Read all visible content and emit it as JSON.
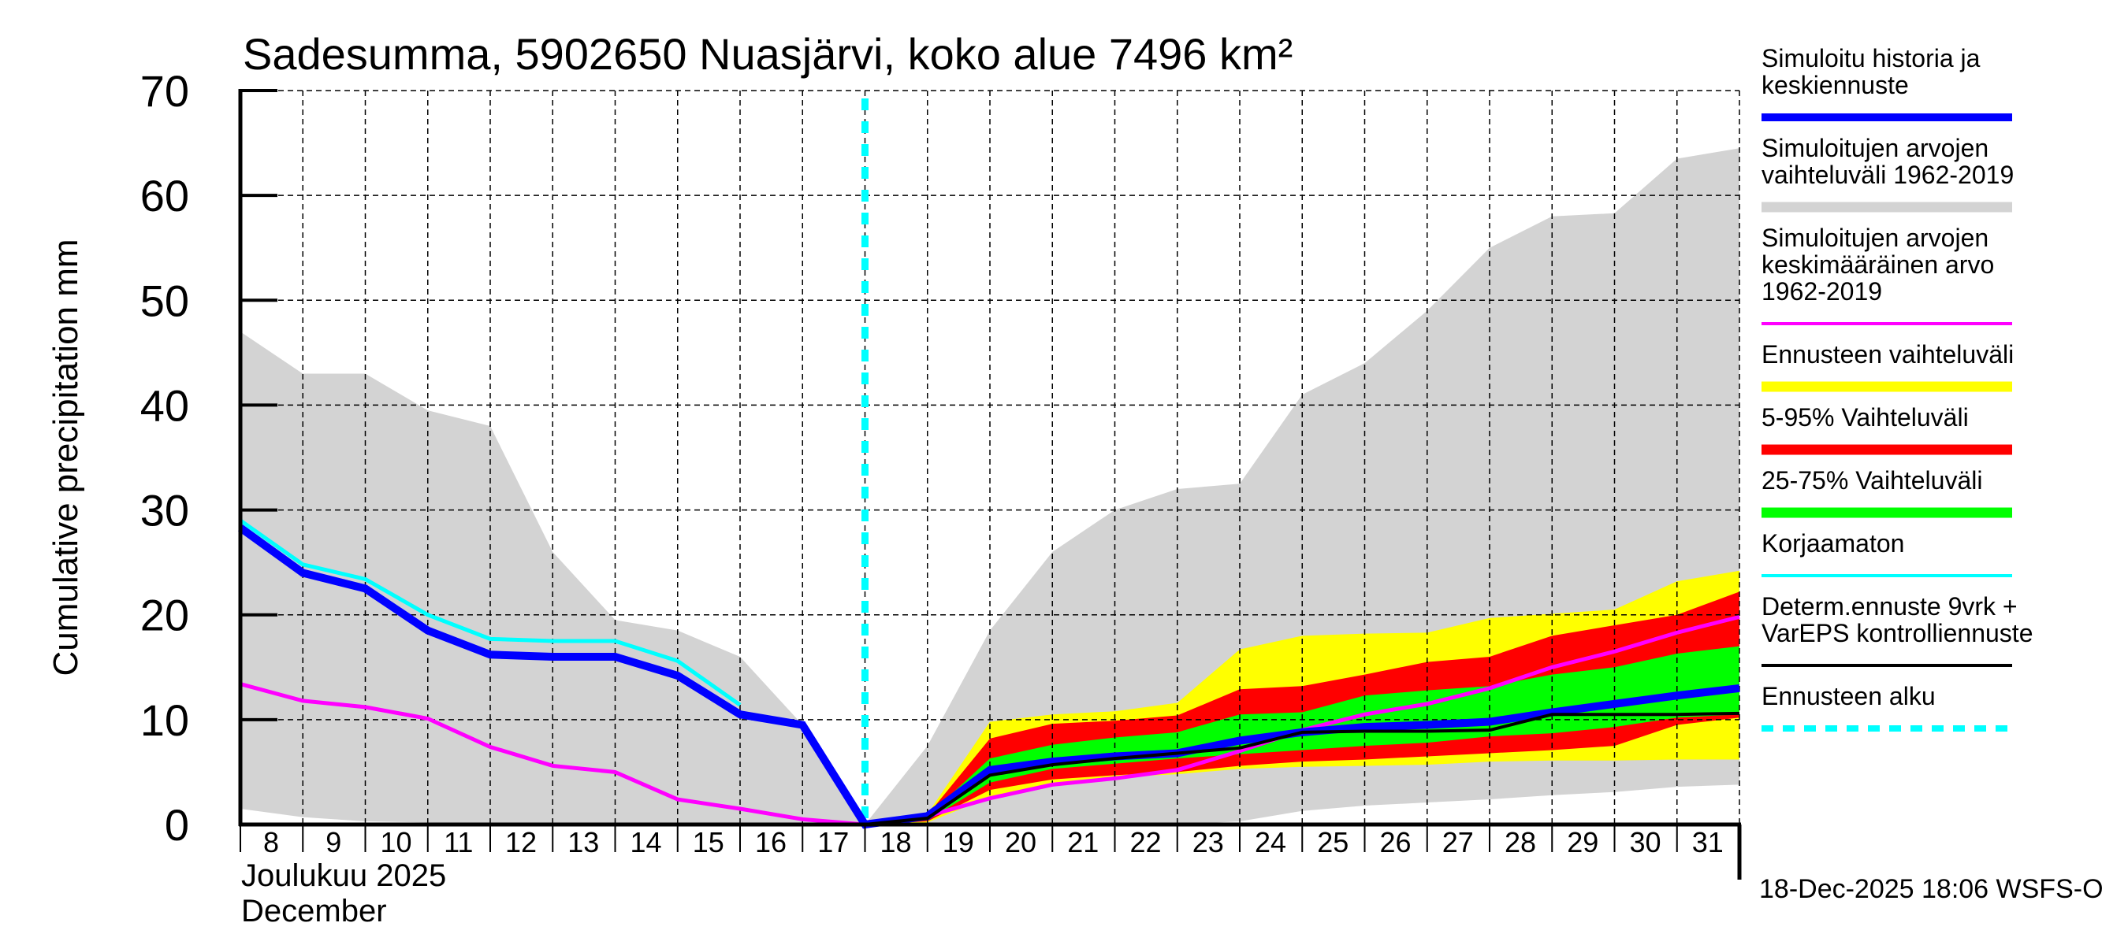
{
  "chart_data": {
    "type": "area",
    "title": "Sadesumma, 5902650 Nuasjärvi, koko alue 7496 km²",
    "ylabel": "Cumulative precipitation   mm",
    "xlabel_line1": "Joulukuu  2025",
    "xlabel_line2": "December",
    "footer": "18-Dec-2025 18:06 WSFS-O",
    "ylim": [
      0,
      70
    ],
    "xlim": [
      8,
      32
    ],
    "grid": true,
    "legend_position": "right",
    "yticks": [
      0,
      10,
      20,
      30,
      40,
      50,
      60,
      70
    ],
    "xticks": [
      8,
      9,
      10,
      11,
      12,
      13,
      14,
      15,
      16,
      17,
      18,
      19,
      20,
      21,
      22,
      23,
      24,
      25,
      26,
      27,
      28,
      29,
      30,
      31
    ],
    "forecast_start": 18,
    "x": [
      8,
      9,
      10,
      11,
      12,
      13,
      14,
      15,
      16,
      17,
      18,
      19,
      20,
      21,
      22,
      23,
      24,
      25,
      26,
      27,
      28,
      29,
      30,
      31,
      32
    ],
    "bands": [
      {
        "name": "Simuloitujen arvojen vaihteluväli 1962-2019",
        "color": "#d3d3d3",
        "x": [
          8,
          9,
          10,
          11,
          12,
          13,
          14,
          15,
          16,
          17,
          18,
          19,
          20,
          21,
          22,
          23,
          24,
          25,
          26,
          27,
          28,
          29,
          30,
          31,
          32
        ],
        "upper": [
          47,
          43,
          43,
          39.5,
          38,
          26,
          19.5,
          18.5,
          16,
          9.5,
          0,
          7.5,
          18.5,
          26,
          30,
          32,
          32.5,
          41,
          44,
          49,
          55,
          58,
          58.3,
          63.5,
          64.5
        ],
        "lower": [
          1.5,
          0.7,
          0.3,
          0.2,
          0.1,
          0,
          0,
          0,
          0,
          0,
          0,
          0,
          0,
          0,
          0,
          0,
          0.3,
          1.3,
          1.8,
          2.1,
          2.4,
          2.8,
          3.1,
          3.6,
          3.8
        ]
      },
      {
        "name": "Ennusteen vaihteluväli",
        "color": "#ffff00",
        "x": [
          18,
          19,
          20,
          21,
          22,
          23,
          24,
          25,
          26,
          27,
          28,
          29,
          30,
          31,
          32
        ],
        "upper": [
          0,
          1,
          9.8,
          10.5,
          10.8,
          11.6,
          16.7,
          18,
          18.2,
          18.3,
          19.7,
          20.1,
          20.5,
          23.2,
          24.2
        ],
        "lower": [
          0,
          0.2,
          2.6,
          4,
          4.5,
          4.8,
          5.3,
          5.5,
          5.6,
          5.7,
          6,
          6.1,
          6.1,
          6.2,
          6.2
        ]
      },
      {
        "name": "5-95% Vaihteluväli",
        "color": "#ff0000",
        "x": [
          18,
          19,
          20,
          21,
          22,
          23,
          24,
          25,
          26,
          27,
          28,
          29,
          30,
          31,
          32
        ],
        "upper": [
          0,
          0.9,
          8.2,
          9.6,
          9.9,
          10.4,
          12.9,
          13.2,
          14.3,
          15.5,
          16,
          18,
          19,
          20,
          22.2
        ],
        "lower": [
          0,
          0.3,
          3.3,
          4.3,
          4.7,
          5,
          5.6,
          6,
          6.2,
          6.5,
          6.8,
          7.1,
          7.5,
          9.5,
          10.2
        ]
      },
      {
        "name": "25-75% Vaihteluväli",
        "color": "#00ff00",
        "x": [
          18,
          19,
          20,
          21,
          22,
          23,
          24,
          25,
          26,
          27,
          28,
          29,
          30,
          31,
          32
        ],
        "upper": [
          0,
          0.8,
          6.3,
          7.6,
          8.3,
          8.8,
          10.5,
          10.7,
          12.3,
          12.8,
          13.2,
          14.3,
          15,
          16.3,
          17
        ],
        "lower": [
          0,
          0.4,
          4,
          5.3,
          5.8,
          6.3,
          6.7,
          7.1,
          7.5,
          7.8,
          8.4,
          8.7,
          9.3,
          10.2,
          10.5
        ]
      }
    ],
    "series": [
      {
        "name": "Simuloitujen arvojen keskimääräinen arvo 1962-2019",
        "color": "#ff00ff",
        "width": 5,
        "x": [
          8,
          9,
          10,
          11,
          12,
          13,
          14,
          15,
          16,
          17,
          18,
          19,
          20,
          21,
          22,
          23,
          24,
          25,
          26,
          27,
          28,
          29,
          30,
          31,
          32
        ],
        "values": [
          13.4,
          11.8,
          11.2,
          10.1,
          7.4,
          5.6,
          5,
          2.4,
          1.5,
          0.5,
          0,
          0.8,
          2.5,
          3.8,
          4.4,
          5.2,
          7,
          9,
          10.5,
          11.5,
          13,
          15,
          16.5,
          18.3,
          19.8
        ]
      },
      {
        "name": "Korjaamaton",
        "color": "#00ffff",
        "width": 5,
        "x": [
          8,
          9,
          10,
          11,
          12,
          13,
          14,
          15,
          16
        ],
        "values": [
          29,
          24.8,
          23.4,
          20,
          17.7,
          17.5,
          17.5,
          15.6,
          11.4
        ]
      },
      {
        "name": "Simuloitu historia ja keskiennuste",
        "color": "#0000ff",
        "width": 10,
        "x": [
          8,
          9,
          10,
          11,
          12,
          13,
          14,
          15,
          16,
          17,
          18,
          19,
          20,
          21,
          22,
          23,
          24,
          25,
          26,
          27,
          28,
          29,
          30,
          31,
          32
        ],
        "values": [
          28.3,
          24,
          22.5,
          18.5,
          16.2,
          16,
          16,
          14.2,
          10.5,
          9.5,
          0,
          0.8,
          5.2,
          6,
          6.5,
          6.8,
          8,
          8.8,
          9.3,
          9.5,
          9.8,
          10.7,
          11.5,
          12.3,
          13
        ]
      },
      {
        "name": "Determ.ennuste 9vrk + VarEPS kontrolliennuste",
        "color": "#000000",
        "width": 4,
        "x": [
          18,
          19,
          20,
          21,
          22,
          23,
          24,
          25,
          26,
          27,
          28,
          29,
          30,
          31,
          32
        ],
        "values": [
          0,
          0.6,
          4.7,
          5.7,
          6.3,
          6.8,
          7.3,
          8.8,
          8.9,
          8.9,
          9,
          10.5,
          10.5,
          10.5,
          10.6
        ]
      }
    ],
    "legend": [
      {
        "lines": [
          "Simuloitu historia ja",
          "keskiennuste"
        ],
        "color": "#0000ff",
        "style": "thick"
      },
      {
        "lines": [
          "Simuloitujen arvojen",
          "vaihteluväli 1962-2019"
        ],
        "color": "#d3d3d3",
        "style": "band"
      },
      {
        "lines": [
          "Simuloitujen arvojen",
          "keskimääräinen arvo",
          "   1962-2019"
        ],
        "color": "#ff00ff",
        "style": "medium"
      },
      {
        "lines": [
          "Ennusteen vaihteluväli"
        ],
        "color": "#ffff00",
        "style": "band"
      },
      {
        "lines": [
          "5-95% Vaihteluväli"
        ],
        "color": "#ff0000",
        "style": "band"
      },
      {
        "lines": [
          "25-75% Vaihteluväli"
        ],
        "color": "#00ff00",
        "style": "band"
      },
      {
        "lines": [
          "Korjaamaton"
        ],
        "color": "#00ffff",
        "style": "medium"
      },
      {
        "lines": [
          "Determ.ennuste 9vrk +",
          "VarEPS kontrolliennuste"
        ],
        "color": "#000000",
        "style": "medium"
      },
      {
        "lines": [
          "Ennusteen alku"
        ],
        "color": "#00ffff",
        "style": "dashed"
      }
    ]
  }
}
